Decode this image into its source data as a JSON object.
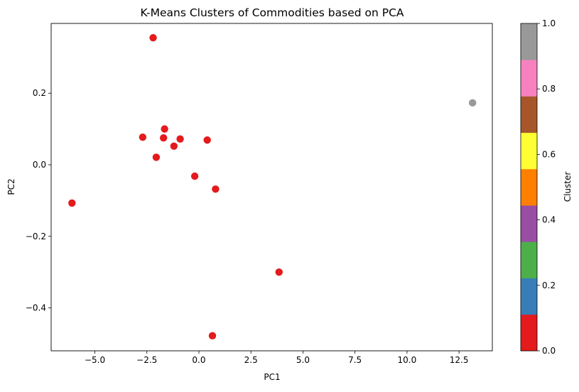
{
  "chart_data": {
    "type": "scatter",
    "title": "K-Means Clusters of Commodities based on PCA",
    "xlabel": "PC1",
    "ylabel": "PC2",
    "xlim": [
      -7.1,
      14.1
    ],
    "ylim": [
      -0.52,
      0.395
    ],
    "xticks": [
      -5.0,
      -2.5,
      0.0,
      2.5,
      5.0,
      7.5,
      10.0,
      12.5
    ],
    "xtick_labels": [
      "−5.0",
      "−2.5",
      "0.0",
      "2.5",
      "5.0",
      "7.5",
      "10.0",
      "12.5"
    ],
    "yticks": [
      -0.4,
      -0.2,
      0.0,
      0.2
    ],
    "ytick_labels": [
      "−0.4",
      "−0.2",
      "0.0",
      "0.2"
    ],
    "grid": false,
    "points": [
      {
        "x": -2.2,
        "y": 0.355,
        "cluster": 0
      },
      {
        "x": -1.65,
        "y": 0.1,
        "cluster": 0
      },
      {
        "x": -2.7,
        "y": 0.077,
        "cluster": 0
      },
      {
        "x": -1.7,
        "y": 0.075,
        "cluster": 0
      },
      {
        "x": -0.9,
        "y": 0.072,
        "cluster": 0
      },
      {
        "x": 0.4,
        "y": 0.069,
        "cluster": 0
      },
      {
        "x": -1.2,
        "y": 0.052,
        "cluster": 0
      },
      {
        "x": -2.05,
        "y": 0.021,
        "cluster": 0
      },
      {
        "x": -0.2,
        "y": -0.032,
        "cluster": 0
      },
      {
        "x": 0.8,
        "y": -0.068,
        "cluster": 0
      },
      {
        "x": -6.1,
        "y": -0.107,
        "cluster": 0
      },
      {
        "x": 3.85,
        "y": -0.3,
        "cluster": 0
      },
      {
        "x": 0.65,
        "y": -0.478,
        "cluster": 0
      },
      {
        "x": 13.15,
        "y": 0.173,
        "cluster": 1
      }
    ],
    "point_colors": {
      "0": "#e41a1c",
      "1": "#999999"
    },
    "colorbar": {
      "label": "Cluster",
      "range": [
        0.0,
        1.0
      ],
      "ticks": [
        0.0,
        0.2,
        0.4,
        0.6,
        0.8,
        1.0
      ],
      "tick_labels": [
        "0.0",
        "0.2",
        "0.4",
        "0.6",
        "0.8",
        "1.0"
      ],
      "colors": [
        "#e41a1c",
        "#377eb8",
        "#4daf4a",
        "#984ea3",
        "#ff7f00",
        "#ffff33",
        "#a65628",
        "#f781bf",
        "#999999"
      ]
    }
  }
}
